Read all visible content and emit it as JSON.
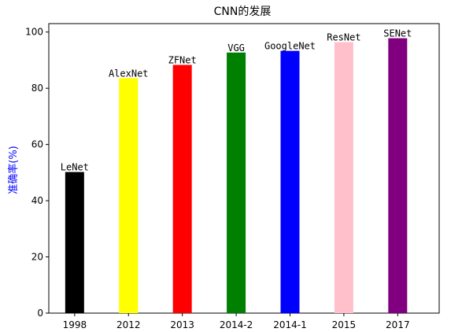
{
  "chart_data": {
    "type": "bar",
    "title": "CNN的发展",
    "xlabel": "",
    "ylabel": "准确率(%)",
    "ylabel_color": "#0000ff",
    "ylim": [
      0,
      103
    ],
    "yticks": [
      0,
      20,
      40,
      60,
      80,
      100
    ],
    "categories": [
      "1998",
      "2012",
      "2013",
      "2014-2",
      "2014-1",
      "2015",
      "2017"
    ],
    "values": [
      50.2,
      83.6,
      88.3,
      92.7,
      93.3,
      96.4,
      97.8
    ],
    "data_labels": [
      "LeNet",
      "AlexNet",
      "ZFNet",
      "VGG",
      "GoogleNet",
      "ResNet",
      "SENet"
    ],
    "colors": [
      "#000000",
      "#ffff00",
      "#ff0000",
      "#008000",
      "#0000ff",
      "#ffc0cb",
      "#800080"
    ],
    "grid": false,
    "legend": "none"
  }
}
